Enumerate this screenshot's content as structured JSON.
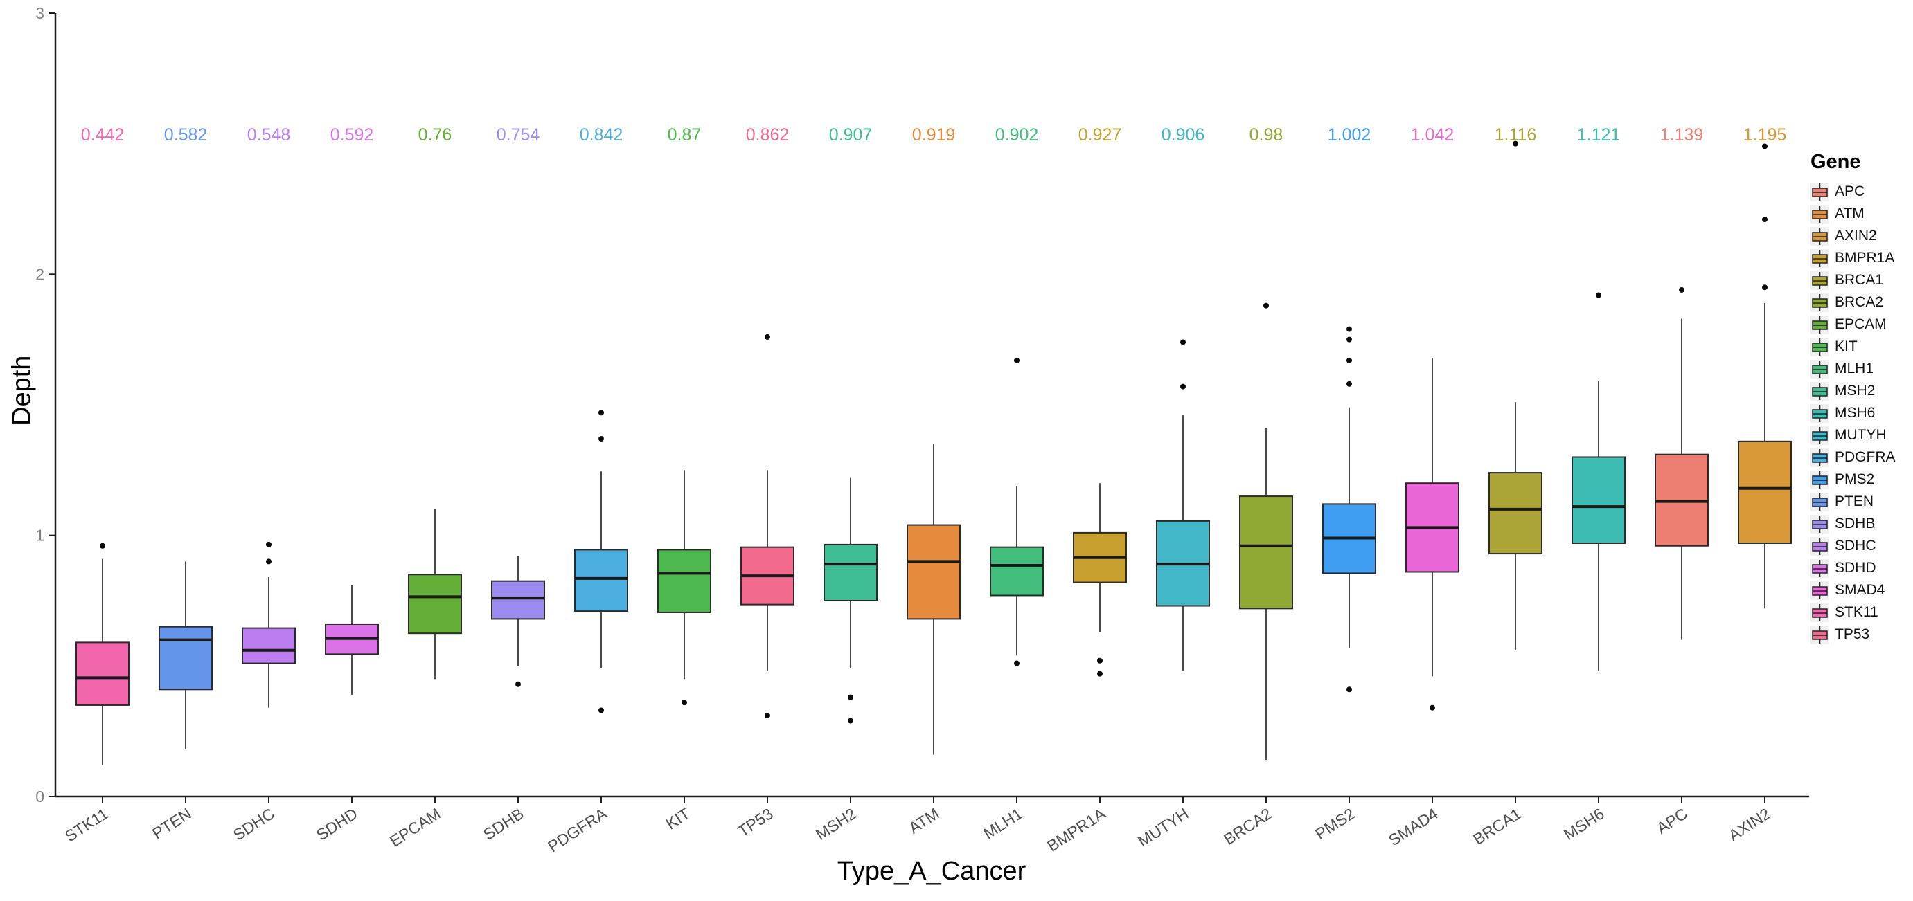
{
  "chart_data": {
    "type": "boxplot",
    "title": "",
    "xlabel": "Type_A_Cancer",
    "ylabel": "Depth",
    "ylim": [
      0,
      3
    ],
    "y_ticks": [
      0,
      1,
      2,
      3
    ],
    "grid": false,
    "background": "#ffffff",
    "axis_color": "#1a1a1a",
    "tick_label_color": "#808080",
    "x_label_color": "#4d4d4d",
    "outlier_color": "#0a0a0a",
    "categories": [
      "STK11",
      "PTEN",
      "SDHC",
      "SDHD",
      "EPCAM",
      "SDHB",
      "PDGFRA",
      "KIT",
      "TP53",
      "MSH2",
      "ATM",
      "MLH1",
      "BMPR1A",
      "MUTYH",
      "BRCA2",
      "PMS2",
      "SMAD4",
      "BRCA1",
      "MSH6",
      "APC",
      "AXIN2"
    ],
    "boxes": [
      {
        "gene": "STK11",
        "mean_label": "0.442",
        "color": "#F166AC",
        "whisker_low": 0.12,
        "q1": 0.35,
        "median": 0.455,
        "q3": 0.59,
        "whisker_high": 0.91,
        "outliers": [
          0.96
        ]
      },
      {
        "gene": "PTEN",
        "mean_label": "0.582",
        "color": "#6495EB",
        "whisker_low": 0.18,
        "q1": 0.41,
        "median": 0.6,
        "q3": 0.65,
        "whisker_high": 0.9,
        "outliers": []
      },
      {
        "gene": "SDHC",
        "mean_label": "0.548",
        "color": "#BC7DF0",
        "whisker_low": 0.34,
        "q1": 0.51,
        "median": 0.56,
        "q3": 0.645,
        "whisker_high": 0.84,
        "outliers": [
          0.965,
          0.9
        ]
      },
      {
        "gene": "SDHD",
        "mean_label": "0.592",
        "color": "#DB72E8",
        "whisker_low": 0.39,
        "q1": 0.545,
        "median": 0.605,
        "q3": 0.66,
        "whisker_high": 0.81,
        "outliers": []
      },
      {
        "gene": "EPCAM",
        "mean_label": "0.76",
        "color": "#64AF38",
        "whisker_low": 0.45,
        "q1": 0.625,
        "median": 0.765,
        "q3": 0.85,
        "whisker_high": 1.1,
        "outliers": []
      },
      {
        "gene": "SDHB",
        "mean_label": "0.754",
        "color": "#9B8BF0",
        "whisker_low": 0.5,
        "q1": 0.68,
        "median": 0.76,
        "q3": 0.825,
        "whisker_high": 0.92,
        "outliers": [
          0.43
        ]
      },
      {
        "gene": "PDGFRA",
        "mean_label": "0.842",
        "color": "#4CAEDE",
        "whisker_low": 0.49,
        "q1": 0.71,
        "median": 0.835,
        "q3": 0.945,
        "whisker_high": 1.245,
        "outliers": [
          1.47,
          1.37,
          0.33
        ]
      },
      {
        "gene": "KIT",
        "mean_label": "0.87",
        "color": "#4CB84E",
        "whisker_low": 0.45,
        "q1": 0.705,
        "median": 0.855,
        "q3": 0.945,
        "whisker_high": 1.25,
        "outliers": [
          0.36
        ]
      },
      {
        "gene": "TP53",
        "mean_label": "0.862",
        "color": "#F16A8E",
        "whisker_low": 0.48,
        "q1": 0.735,
        "median": 0.845,
        "q3": 0.955,
        "whisker_high": 1.25,
        "outliers": [
          1.76,
          0.31
        ]
      },
      {
        "gene": "MSH2",
        "mean_label": "0.907",
        "color": "#3FBD94",
        "whisker_low": 0.49,
        "q1": 0.75,
        "median": 0.89,
        "q3": 0.965,
        "whisker_high": 1.22,
        "outliers": [
          0.38,
          0.29
        ]
      },
      {
        "gene": "ATM",
        "mean_label": "0.919",
        "color": "#E68A3D",
        "whisker_low": 0.16,
        "q1": 0.68,
        "median": 0.9,
        "q3": 1.04,
        "whisker_high": 1.35,
        "outliers": []
      },
      {
        "gene": "MLH1",
        "mean_label": "0.902",
        "color": "#43BD7B",
        "whisker_low": 0.54,
        "q1": 0.77,
        "median": 0.885,
        "q3": 0.955,
        "whisker_high": 1.19,
        "outliers": [
          1.67,
          0.51
        ]
      },
      {
        "gene": "BMPR1A",
        "mean_label": "0.927",
        "color": "#C7A02F",
        "whisker_low": 0.63,
        "q1": 0.82,
        "median": 0.915,
        "q3": 1.01,
        "whisker_high": 1.2,
        "outliers": [
          0.52,
          0.47
        ]
      },
      {
        "gene": "MUTYH",
        "mean_label": "0.906",
        "color": "#41B7C8",
        "whisker_low": 0.48,
        "q1": 0.73,
        "median": 0.89,
        "q3": 1.055,
        "whisker_high": 1.46,
        "outliers": [
          1.74,
          1.57
        ]
      },
      {
        "gene": "BRCA2",
        "mean_label": "0.98",
        "color": "#8FA934",
        "whisker_low": 0.14,
        "q1": 0.72,
        "median": 0.96,
        "q3": 1.15,
        "whisker_high": 1.41,
        "outliers": [
          1.88
        ]
      },
      {
        "gene": "PMS2",
        "mean_label": "1.002",
        "color": "#3F9DF2",
        "whisker_low": 0.57,
        "q1": 0.855,
        "median": 0.99,
        "q3": 1.12,
        "whisker_high": 1.49,
        "outliers": [
          1.79,
          1.75,
          1.67,
          1.58,
          0.41
        ]
      },
      {
        "gene": "SMAD4",
        "mean_label": "1.042",
        "color": "#E965D8",
        "whisker_low": 0.46,
        "q1": 0.86,
        "median": 1.03,
        "q3": 1.2,
        "whisker_high": 1.68,
        "outliers": [
          0.34
        ]
      },
      {
        "gene": "BRCA1",
        "mean_label": "1.116",
        "color": "#ACA437",
        "whisker_low": 0.56,
        "q1": 0.93,
        "median": 1.1,
        "q3": 1.24,
        "whisker_high": 1.51,
        "outliers": [
          2.5
        ]
      },
      {
        "gene": "MSH6",
        "mean_label": "1.121",
        "color": "#3CBCB2",
        "whisker_low": 0.48,
        "q1": 0.97,
        "median": 1.11,
        "q3": 1.3,
        "whisker_high": 1.59,
        "outliers": [
          1.92
        ]
      },
      {
        "gene": "APC",
        "mean_label": "1.139",
        "color": "#EE7E72",
        "whisker_low": 0.6,
        "q1": 0.96,
        "median": 1.13,
        "q3": 1.31,
        "whisker_high": 1.83,
        "outliers": [
          1.94
        ]
      },
      {
        "gene": "AXIN2",
        "mean_label": "1.195",
        "color": "#D89838",
        "whisker_low": 0.72,
        "q1": 0.97,
        "median": 1.18,
        "q3": 1.36,
        "whisker_high": 1.89,
        "outliers": [
          2.49,
          2.21,
          1.95
        ]
      }
    ],
    "legend": {
      "title": "Gene",
      "position": "right",
      "entries": [
        {
          "label": "APC",
          "color": "#EE7E72"
        },
        {
          "label": "ATM",
          "color": "#E68A3D"
        },
        {
          "label": "AXIN2",
          "color": "#D89838"
        },
        {
          "label": "BMPR1A",
          "color": "#C7A02F"
        },
        {
          "label": "BRCA1",
          "color": "#ACA437"
        },
        {
          "label": "BRCA2",
          "color": "#8FA934"
        },
        {
          "label": "EPCAM",
          "color": "#64AF38"
        },
        {
          "label": "KIT",
          "color": "#4CB84E"
        },
        {
          "label": "MLH1",
          "color": "#43BD7B"
        },
        {
          "label": "MSH2",
          "color": "#3FBD94"
        },
        {
          "label": "MSH6",
          "color": "#3CBCB2"
        },
        {
          "label": "MUTYH",
          "color": "#41B7C8"
        },
        {
          "label": "PDGFRA",
          "color": "#4CAEDE"
        },
        {
          "label": "PMS2",
          "color": "#3F9DF2"
        },
        {
          "label": "PTEN",
          "color": "#6495EB"
        },
        {
          "label": "SDHB",
          "color": "#9B8BF0"
        },
        {
          "label": "SDHC",
          "color": "#BC7DF0"
        },
        {
          "label": "SDHD",
          "color": "#DB72E8"
        },
        {
          "label": "SMAD4",
          "color": "#E965D8"
        },
        {
          "label": "STK11",
          "color": "#F166AC"
        },
        {
          "label": "TP53",
          "color": "#F16A8E"
        }
      ]
    }
  }
}
